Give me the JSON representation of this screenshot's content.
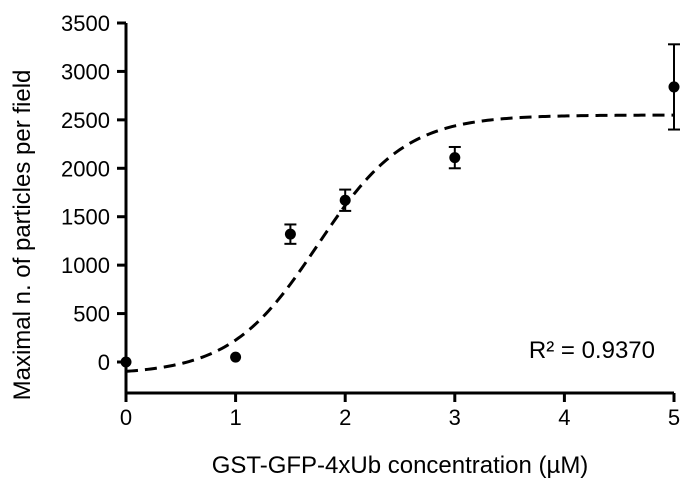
{
  "chart_data": {
    "type": "scatter",
    "xlabel": "GST-GFP-4xUb concentration (µM)",
    "ylabel": "Maximal n. of particles per field",
    "xlim": [
      0,
      5
    ],
    "ylim": [
      -150,
      3500
    ],
    "x_ticks": [
      "0",
      "1",
      "2",
      "3",
      "4",
      "5"
    ],
    "y_ticks": [
      "0",
      "500",
      "1000",
      "1500",
      "2000",
      "2500",
      "3000",
      "3500"
    ],
    "grid": false,
    "legend": "none",
    "annotation": "R² = 0.9370",
    "series": [
      {
        "marker": "filled-circle",
        "color": "#000000",
        "points": [
          {
            "x": 0,
            "y": 0,
            "err": 0
          },
          {
            "x": 1,
            "y": 50,
            "err": 0
          },
          {
            "x": 1.5,
            "y": 1320,
            "err": 100
          },
          {
            "x": 2,
            "y": 1670,
            "err": 110
          },
          {
            "x": 3,
            "y": 2110,
            "err": 110
          },
          {
            "x": 5,
            "y": 2840,
            "err": 440
          }
        ]
      }
    ],
    "fit": {
      "style": "dashed",
      "color": "#000000",
      "model": "sigmoid",
      "bottom": -130,
      "top": 2550,
      "x50": 1.75,
      "slope": 0.4
    }
  }
}
